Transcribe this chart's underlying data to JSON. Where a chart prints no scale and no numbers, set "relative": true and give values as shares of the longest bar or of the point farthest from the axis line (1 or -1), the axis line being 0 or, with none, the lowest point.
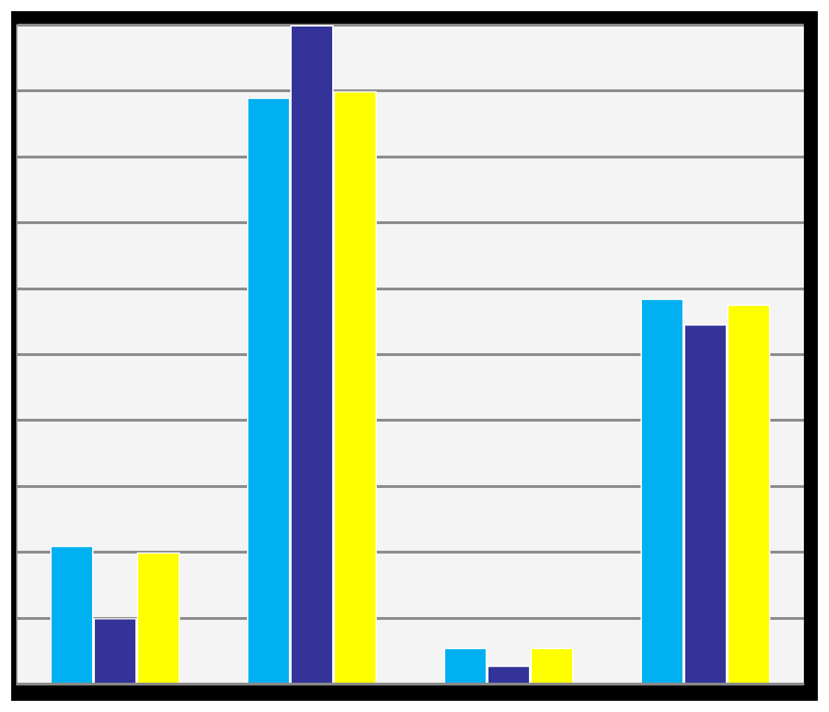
{
  "chart_data": {
    "type": "bar",
    "relative": true,
    "grid": "y",
    "categories": [
      null,
      null,
      null,
      null
    ],
    "series": [
      {
        "color": "#00b0f0",
        "values": [
          0.21,
          0.89,
          0.055,
          0.585
        ]
      },
      {
        "color": "#333399",
        "values": [
          0.1,
          1,
          0.028,
          0.546
        ]
      },
      {
        "color": "#ffff00",
        "values": [
          0.2,
          0.9,
          0.055,
          0.576
        ]
      }
    ]
  }
}
